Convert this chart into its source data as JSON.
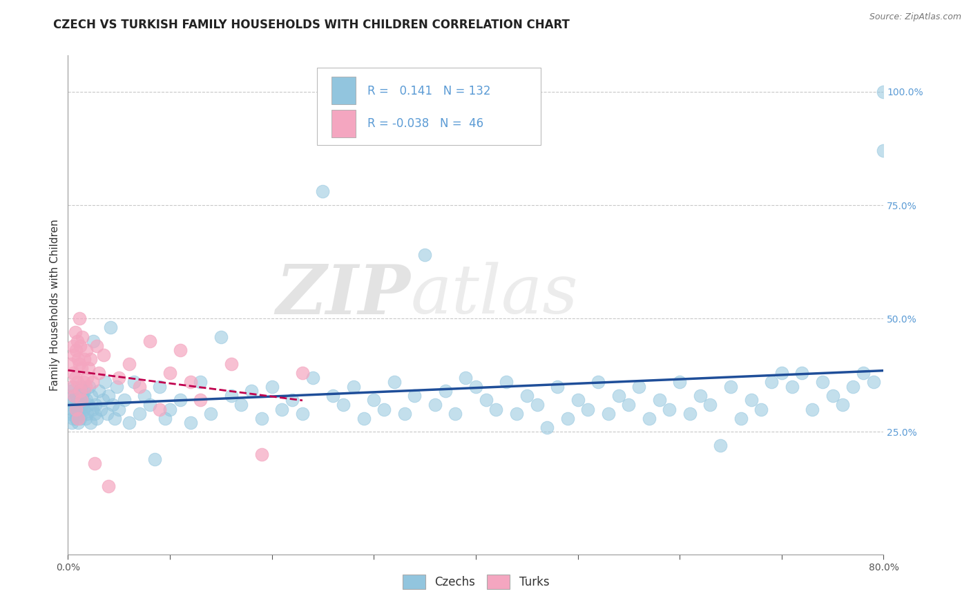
{
  "title": "CZECH VS TURKISH FAMILY HOUSEHOLDS WITH CHILDREN CORRELATION CHART",
  "source_text": "Source: ZipAtlas.com",
  "ylabel": "Family Households with Children",
  "xlim": [
    0.0,
    0.8
  ],
  "ylim": [
    -0.02,
    1.08
  ],
  "xticks": [
    0.0,
    0.1,
    0.2,
    0.3,
    0.4,
    0.5,
    0.6,
    0.7,
    0.8
  ],
  "xticklabels": [
    "0.0%",
    "",
    "",
    "",
    "",
    "",
    "",
    "",
    "80.0%"
  ],
  "yticks": [
    0.25,
    0.5,
    0.75,
    1.0
  ],
  "yticklabels": [
    "25.0%",
    "50.0%",
    "75.0%",
    "100.0%"
  ],
  "czechs_color": "#92c5de",
  "turks_color": "#f4a6c0",
  "czechs_line_color": "#1f4e99",
  "turks_line_color": "#c0004e",
  "R_czechs": 0.141,
  "N_czechs": 132,
  "R_turks": -0.038,
  "N_turks": 46,
  "watermark_zip": "ZIP",
  "watermark_atlas": "atlas",
  "background_color": "#ffffff",
  "grid_color": "#c8c8c8",
  "title_fontsize": 12,
  "axis_label_fontsize": 11,
  "tick_fontsize": 10,
  "czechs_x": [
    0.002,
    0.003,
    0.004,
    0.004,
    0.005,
    0.005,
    0.005,
    0.006,
    0.006,
    0.007,
    0.007,
    0.008,
    0.008,
    0.009,
    0.009,
    0.01,
    0.01,
    0.01,
    0.011,
    0.011,
    0.012,
    0.012,
    0.013,
    0.013,
    0.014,
    0.014,
    0.015,
    0.016,
    0.017,
    0.018,
    0.019,
    0.02,
    0.021,
    0.022,
    0.023,
    0.024,
    0.025,
    0.026,
    0.027,
    0.028,
    0.03,
    0.032,
    0.034,
    0.036,
    0.038,
    0.04,
    0.042,
    0.044,
    0.046,
    0.048,
    0.05,
    0.055,
    0.06,
    0.065,
    0.07,
    0.075,
    0.08,
    0.085,
    0.09,
    0.095,
    0.1,
    0.11,
    0.12,
    0.13,
    0.14,
    0.15,
    0.16,
    0.17,
    0.18,
    0.19,
    0.2,
    0.21,
    0.22,
    0.23,
    0.24,
    0.25,
    0.26,
    0.27,
    0.28,
    0.29,
    0.3,
    0.31,
    0.32,
    0.33,
    0.34,
    0.35,
    0.36,
    0.37,
    0.38,
    0.39,
    0.4,
    0.41,
    0.42,
    0.43,
    0.44,
    0.45,
    0.46,
    0.47,
    0.48,
    0.49,
    0.5,
    0.51,
    0.52,
    0.53,
    0.54,
    0.55,
    0.56,
    0.57,
    0.58,
    0.59,
    0.6,
    0.61,
    0.62,
    0.63,
    0.64,
    0.65,
    0.66,
    0.67,
    0.68,
    0.69,
    0.7,
    0.71,
    0.72,
    0.73,
    0.74,
    0.75,
    0.76,
    0.77,
    0.78,
    0.79,
    0.8,
    0.8
  ],
  "czechs_y": [
    0.29,
    0.31,
    0.34,
    0.27,
    0.33,
    0.3,
    0.28,
    0.32,
    0.35,
    0.29,
    0.31,
    0.28,
    0.33,
    0.3,
    0.32,
    0.29,
    0.31,
    0.27,
    0.34,
    0.3,
    0.32,
    0.28,
    0.35,
    0.29,
    0.33,
    0.31,
    0.3,
    0.34,
    0.28,
    0.32,
    0.29,
    0.31,
    0.35,
    0.27,
    0.33,
    0.3,
    0.45,
    0.29,
    0.31,
    0.28,
    0.34,
    0.3,
    0.32,
    0.36,
    0.29,
    0.33,
    0.48,
    0.31,
    0.28,
    0.35,
    0.3,
    0.32,
    0.27,
    0.36,
    0.29,
    0.33,
    0.31,
    0.19,
    0.35,
    0.28,
    0.3,
    0.32,
    0.27,
    0.36,
    0.29,
    0.46,
    0.33,
    0.31,
    0.34,
    0.28,
    0.35,
    0.3,
    0.32,
    0.29,
    0.37,
    0.78,
    0.33,
    0.31,
    0.35,
    0.28,
    0.32,
    0.3,
    0.36,
    0.29,
    0.33,
    0.64,
    0.31,
    0.34,
    0.29,
    0.37,
    0.35,
    0.32,
    0.3,
    0.36,
    0.29,
    0.33,
    0.31,
    0.26,
    0.35,
    0.28,
    0.32,
    0.3,
    0.36,
    0.29,
    0.33,
    0.31,
    0.35,
    0.28,
    0.32,
    0.3,
    0.36,
    0.29,
    0.33,
    0.31,
    0.22,
    0.35,
    0.28,
    0.32,
    0.3,
    0.36,
    0.38,
    0.35,
    0.38,
    0.3,
    0.36,
    0.33,
    0.31,
    0.35,
    0.38,
    0.36,
    1.0,
    0.87
  ],
  "turks_x": [
    0.003,
    0.004,
    0.005,
    0.005,
    0.006,
    0.006,
    0.007,
    0.007,
    0.008,
    0.008,
    0.009,
    0.009,
    0.01,
    0.01,
    0.011,
    0.011,
    0.012,
    0.012,
    0.013,
    0.013,
    0.014,
    0.015,
    0.016,
    0.017,
    0.018,
    0.019,
    0.02,
    0.022,
    0.024,
    0.026,
    0.028,
    0.03,
    0.035,
    0.04,
    0.05,
    0.06,
    0.07,
    0.08,
    0.09,
    0.1,
    0.11,
    0.12,
    0.13,
    0.16,
    0.19,
    0.23
  ],
  "turks_y": [
    0.4,
    0.35,
    0.44,
    0.38,
    0.42,
    0.33,
    0.47,
    0.37,
    0.43,
    0.3,
    0.45,
    0.36,
    0.41,
    0.28,
    0.4,
    0.5,
    0.34,
    0.44,
    0.39,
    0.32,
    0.46,
    0.36,
    0.41,
    0.35,
    0.43,
    0.37,
    0.39,
    0.41,
    0.36,
    0.18,
    0.44,
    0.38,
    0.42,
    0.13,
    0.37,
    0.4,
    0.35,
    0.45,
    0.3,
    0.38,
    0.43,
    0.36,
    0.32,
    0.4,
    0.2,
    0.38
  ]
}
